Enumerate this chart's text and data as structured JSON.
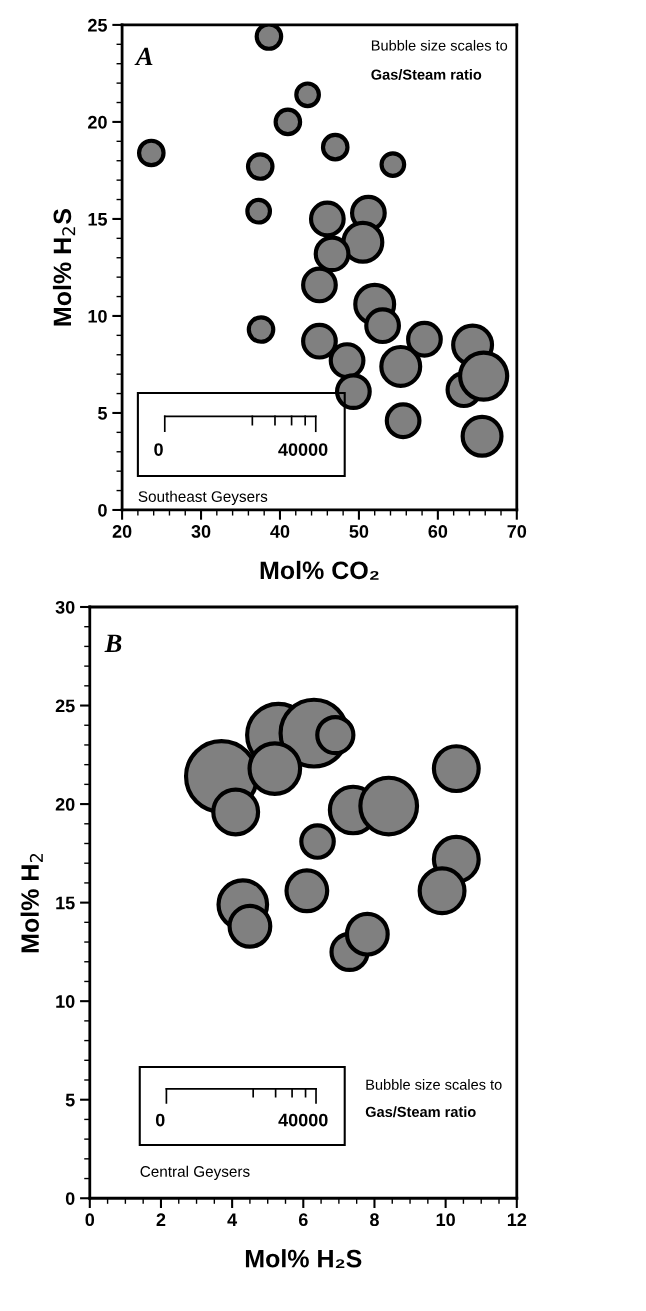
{
  "chart_data": [
    {
      "type": "bubble",
      "xlabel": "Mol% CO₂",
      "ylabel": "Mol% H$_{2}$S",
      "annotations": [
        "A",
        "Bubble size scales to",
        "Gas/Steam ratio",
        "0",
        "40000",
        "Southeast Geysers"
      ],
      "x": [
        23.7,
        38.6,
        43.5,
        41.0,
        37.5,
        47.0,
        54.3,
        37.3,
        46.0,
        51.2,
        50.5,
        46.6,
        45.0,
        52.0,
        53.0,
        37.6,
        45.0,
        58.3,
        48.5,
        49.3,
        55.3,
        55.6,
        63.3,
        64.4,
        65.8,
        65.6
      ],
      "series": [
        {
          "color": "#808080",
          "values": [
            18.4,
            24.4,
            21.4,
            20.0,
            17.7,
            18.7,
            17.8,
            15.4,
            15.0,
            15.3,
            13.8,
            13.2,
            11.6,
            10.6,
            9.5,
            9.3,
            8.7,
            8.8,
            7.7,
            6.1,
            7.4,
            4.6,
            6.2,
            8.5,
            6.9,
            3.8
          ],
          "sizes": [
            0.27,
            0.27,
            0.23,
            0.27,
            0.27,
            0.27,
            0.23,
            0.23,
            0.48,
            0.48,
            0.68,
            0.48,
            0.48,
            0.68,
            0.48,
            0.27,
            0.48,
            0.48,
            0.48,
            0.48,
            0.68,
            0.48,
            0.48,
            0.68,
            1,
            0.68
          ]
        }
      ],
      "xlim": [
        20,
        70
      ],
      "xticks": [
        20,
        {
          "value": 22,
          "label": null
        },
        {
          "value": 24,
          "label": null
        },
        {
          "value": 26,
          "label": null
        },
        {
          "value": 28,
          "label": null
        },
        30,
        {
          "value": 32,
          "label": null
        },
        {
          "value": 34,
          "label": null
        },
        {
          "value": 36,
          "label": null
        },
        {
          "value": 38,
          "label": null
        },
        40,
        {
          "value": 42,
          "label": null
        },
        {
          "value": 44,
          "label": null
        },
        {
          "value": 46,
          "label": null
        },
        {
          "value": 48,
          "label": null
        },
        50,
        {
          "value": 52,
          "label": null
        },
        {
          "value": 54,
          "label": null
        },
        {
          "value": 56,
          "label": null
        },
        {
          "value": 58,
          "label": null
        },
        60,
        {
          "value": 62,
          "label": null
        },
        {
          "value": 64,
          "label": null
        },
        {
          "value": 66,
          "label": null
        },
        {
          "value": 68,
          "label": null
        },
        70
      ],
      "ylim": [
        0,
        25
      ],
      "yticks": [
        0,
        {
          "value": 1,
          "label": null
        },
        {
          "value": 2,
          "label": null
        },
        {
          "value": 3,
          "label": null
        },
        {
          "value": 4,
          "label": null
        },
        5,
        {
          "value": 6,
          "label": null
        },
        {
          "value": 7,
          "label": null
        },
        {
          "value": 8,
          "label": null
        },
        {
          "value": 9,
          "label": null
        },
        10,
        {
          "value": 11,
          "label": null
        },
        {
          "value": 12,
          "label": null
        },
        {
          "value": 13,
          "label": null
        },
        {
          "value": 14,
          "label": null
        },
        15,
        {
          "value": 16,
          "label": null
        },
        {
          "value": 17,
          "label": null
        },
        {
          "value": 18,
          "label": null
        },
        {
          "value": 19,
          "label": null
        },
        20,
        {
          "value": 21,
          "label": null
        },
        {
          "value": 22,
          "label": null
        },
        {
          "value": 23,
          "label": null
        },
        {
          "value": 24,
          "label": null
        },
        25
      ],
      "grid": false,
      "legend": false
    },
    {
      "type": "bubble",
      "xlabel": "Mol% H₂S",
      "ylabel": "Mol% H$_{2}$",
      "annotations": [
        "B",
        "Bubble size scales to",
        "Gas/Steam ratio",
        "0",
        "40000",
        "Central Geysers"
      ],
      "x": [
        3.7,
        4.1,
        5.3,
        6.3,
        5.2,
        6.9,
        7.4,
        8.4,
        6.4,
        10.3,
        10.3,
        9.9,
        4.3,
        4.5,
        6.1,
        7.3,
        7.8
      ],
      "series": [
        {
          "color": "#808080",
          "values": [
            21.4,
            19.6,
            23.5,
            23.6,
            21.8,
            23.5,
            19.7,
            19.9,
            18.1,
            21.8,
            17.2,
            15.6,
            14.9,
            13.8,
            15.6,
            12.5,
            13.4
          ],
          "sizes": [
            1,
            0.4,
            0.78,
            0.89,
            0.51,
            0.26,
            0.43,
            0.64,
            0.21,
            0.4,
            0.4,
            0.4,
            0.47,
            0.33,
            0.33,
            0.26,
            0.33
          ]
        }
      ],
      "xlim": [
        0,
        12
      ],
      "xticks": [
        0,
        {
          "value": 0.5,
          "label": null
        },
        {
          "value": 1,
          "label": null
        },
        {
          "value": 1.5,
          "label": null
        },
        2,
        {
          "value": 2.5,
          "label": null
        },
        {
          "value": 3,
          "label": null
        },
        {
          "value": 3.5,
          "label": null
        },
        4,
        {
          "value": 4.5,
          "label": null
        },
        {
          "value": 5,
          "label": null
        },
        {
          "value": 5.5,
          "label": null
        },
        6,
        {
          "value": 6.5,
          "label": null
        },
        {
          "value": 7,
          "label": null
        },
        {
          "value": 7.5,
          "label": null
        },
        8,
        {
          "value": 8.5,
          "label": null
        },
        {
          "value": 9,
          "label": null
        },
        {
          "value": 9.5,
          "label": null
        },
        10,
        {
          "value": 10.5,
          "label": null
        },
        {
          "value": 11,
          "label": null
        },
        {
          "value": 11.5,
          "label": null
        },
        12
      ],
      "ylim": [
        0,
        30
      ],
      "yticks": [
        0,
        {
          "value": 1,
          "label": null
        },
        {
          "value": 2,
          "label": null
        },
        {
          "value": 3,
          "label": null
        },
        {
          "value": 4,
          "label": null
        },
        5,
        {
          "value": 6,
          "label": null
        },
        {
          "value": 7,
          "label": null
        },
        {
          "value": 8,
          "label": null
        },
        {
          "value": 9,
          "label": null
        },
        10,
        {
          "value": 11,
          "label": null
        },
        {
          "value": 12,
          "label": null
        },
        {
          "value": 13,
          "label": null
        },
        {
          "value": 14,
          "label": null
        },
        15,
        {
          "value": 16,
          "label": null
        },
        {
          "value": 17,
          "label": null
        },
        {
          "value": 18,
          "label": null
        },
        {
          "value": 19,
          "label": null
        },
        20,
        {
          "value": 21,
          "label": null
        },
        {
          "value": 22,
          "label": null
        },
        {
          "value": 23,
          "label": null
        },
        {
          "value": 24,
          "label": null
        },
        25,
        {
          "value": 26,
          "label": null
        },
        {
          "value": 27,
          "label": null
        },
        {
          "value": 28,
          "label": null
        },
        {
          "value": 29,
          "label": null
        },
        30
      ],
      "grid": false,
      "legend": false
    }
  ]
}
